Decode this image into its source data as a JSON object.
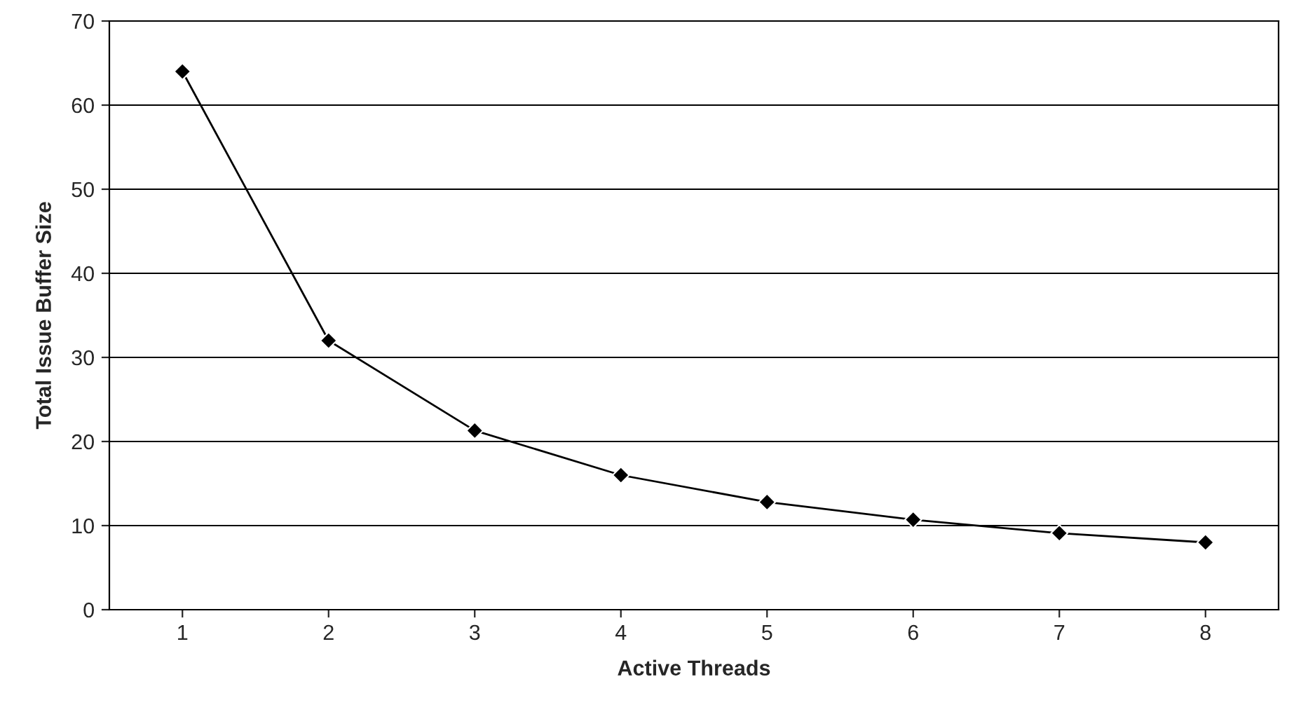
{
  "chart_data": {
    "type": "line",
    "xlabel": "Active Threads",
    "ylabel": "Total Issue Buffer Size",
    "categories": [
      "1",
      "2",
      "3",
      "4",
      "5",
      "6",
      "7",
      "8"
    ],
    "series": [
      {
        "color": "#000000",
        "values": [
          64,
          32,
          21.3,
          16,
          12.8,
          10.7,
          9.1,
          8
        ]
      }
    ],
    "ylim": [
      0,
      70
    ],
    "yticks": [
      0,
      10,
      20,
      30,
      40,
      50,
      60,
      70
    ],
    "grid": "y",
    "marker": "diamond",
    "line_style": "solid",
    "legend": false
  }
}
